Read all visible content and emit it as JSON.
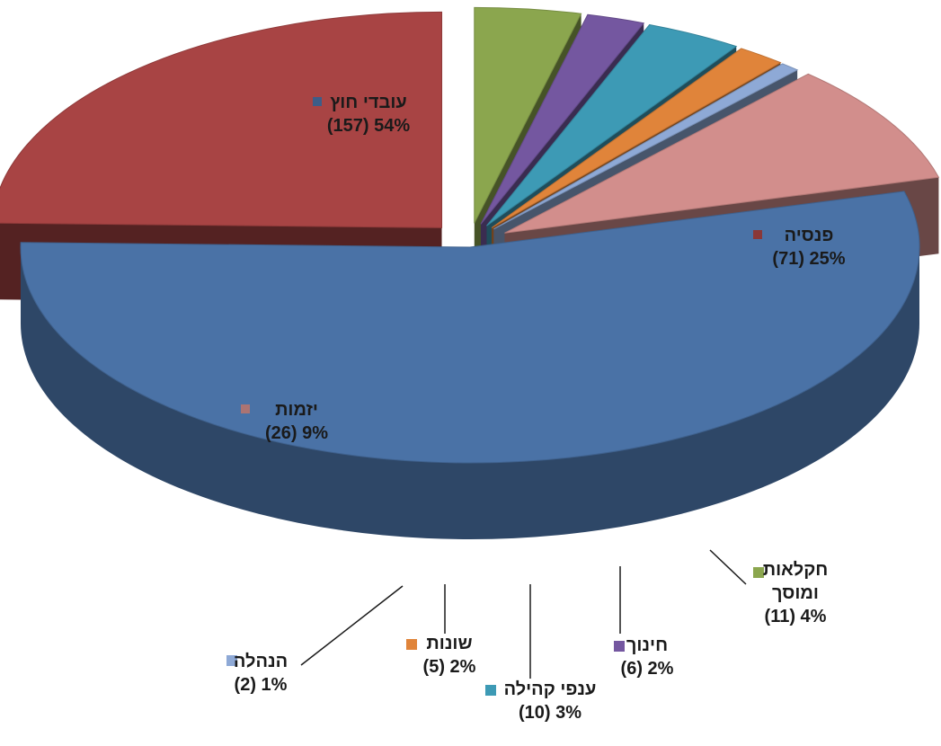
{
  "chart_data": {
    "type": "pie",
    "style": "3d-exploded",
    "legend": "none",
    "categories": [
      "עובדי חוץ",
      "פנסיה",
      "חקלאות ומוסך",
      "חינוך",
      "ענפי קהילה",
      "שונות",
      "הנהלה",
      "יזמות"
    ],
    "series": [
      {
        "values": [
          157,
          71,
          11,
          6,
          10,
          5,
          2,
          26
        ],
        "percent_labels": [
          "54%",
          "25%",
          "4%",
          "2%",
          "3%",
          "2%",
          "1%",
          "9%"
        ]
      }
    ],
    "slices": [
      {
        "name": "עובדי חוץ",
        "line1": "עובדי חוץ",
        "line2": "(157) 54%",
        "value": 157,
        "color": "#4A72A6"
      },
      {
        "name": "פנסיה",
        "line1": "פנסיה",
        "line2": "(71)  25%",
        "value": 71,
        "color": "#A84444"
      },
      {
        "name": "חקלאות ומוסך",
        "line1": "חקלאות",
        "line2": "ומוסך",
        "line3": "(11) 4%",
        "value": 11,
        "color": "#8BA64E"
      },
      {
        "name": "חינוך",
        "line1": "חינוך",
        "line2": "(6) 2%",
        "value": 6,
        "color": "#7457A0"
      },
      {
        "name": "ענפי קהילה",
        "line1": "ענפי קהילה",
        "line2": "(10) 3%",
        "value": 10,
        "color": "#3D9AB5"
      },
      {
        "name": "שונות",
        "line1": "שונות",
        "line2": "(5) 2%",
        "value": 5,
        "color": "#E0843A"
      },
      {
        "name": "הנהלה",
        "line1": "הנהלה",
        "line2": "(2) 1%",
        "value": 2,
        "color": "#8EA9D6"
      },
      {
        "name": "יזמות",
        "line1": "יזמות",
        "line2": "(26) 9%",
        "value": 26,
        "color": "#D28E8C"
      }
    ]
  }
}
